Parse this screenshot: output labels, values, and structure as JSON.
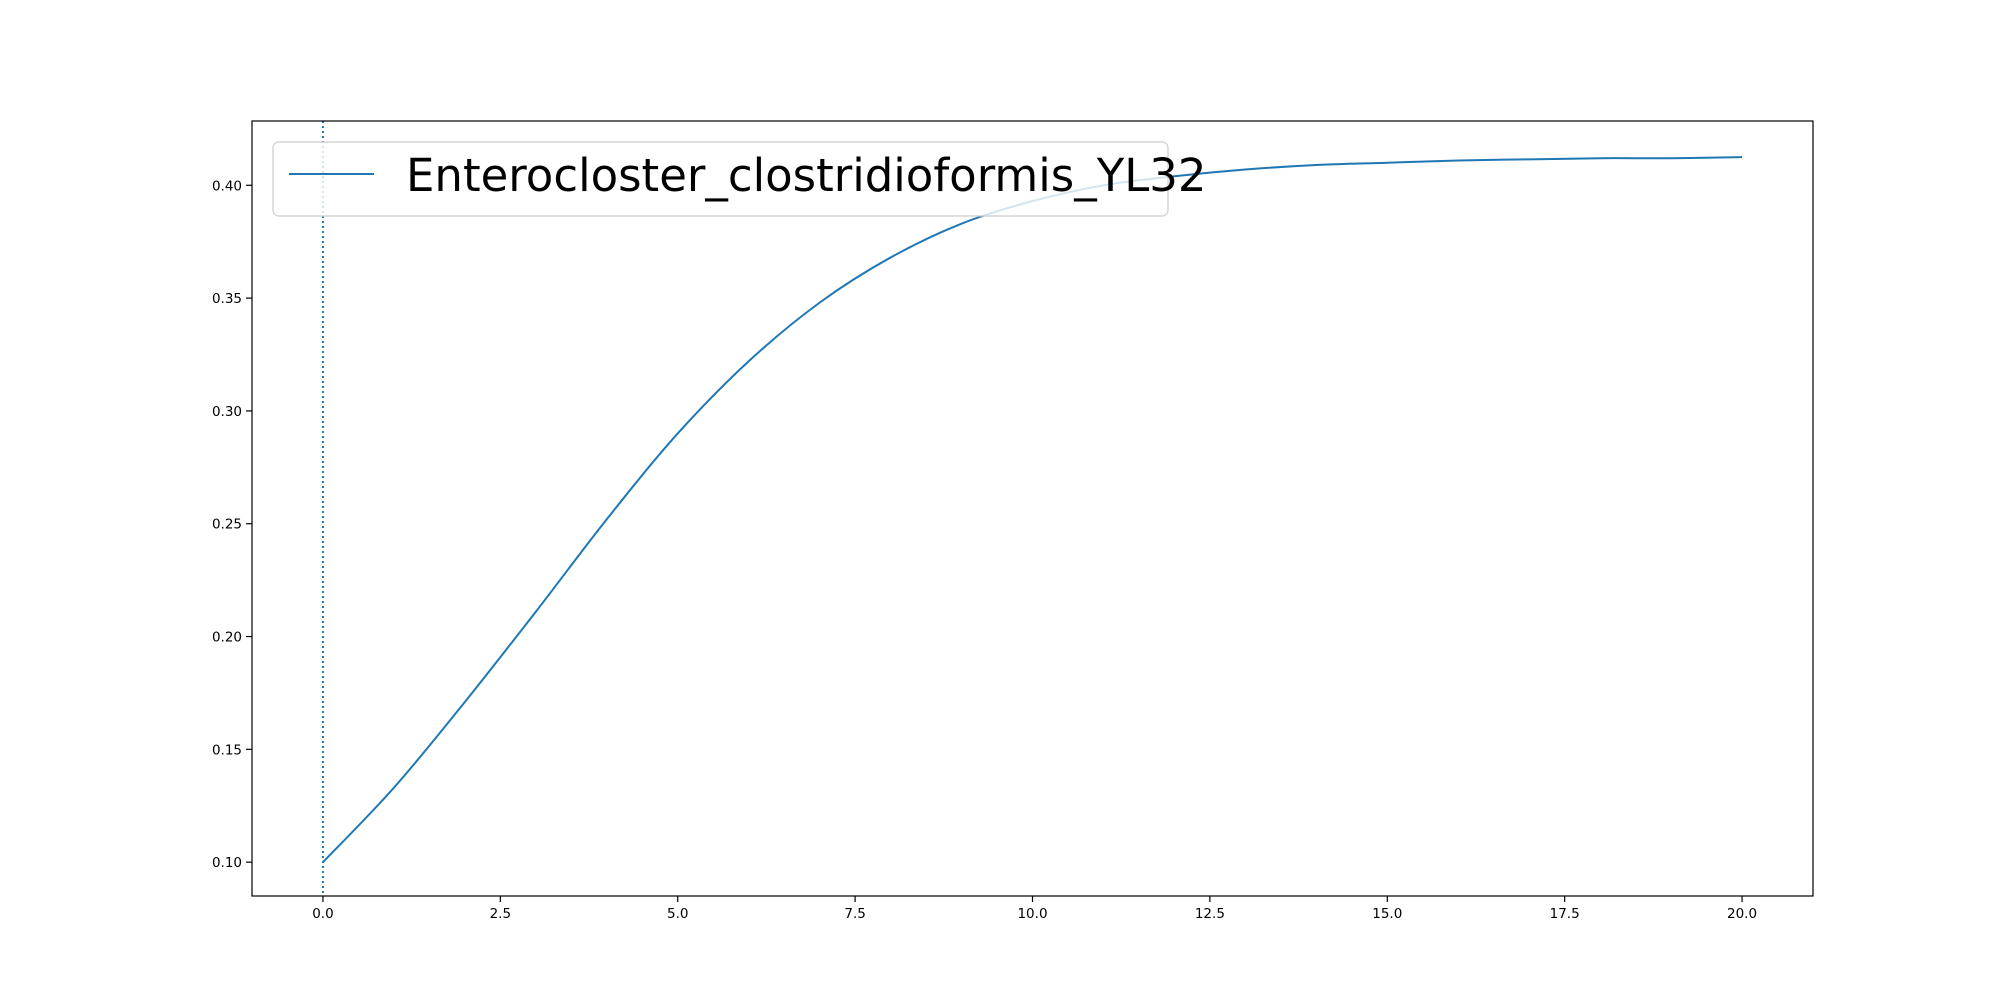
{
  "chart_data": {
    "type": "line",
    "title": "",
    "xlabel": "",
    "ylabel": "",
    "xlim": [
      -1.0,
      21.0
    ],
    "ylim": [
      0.085,
      0.4285
    ],
    "x_ticks": [
      0.0,
      2.5,
      5.0,
      7.5,
      10.0,
      12.5,
      15.0,
      17.5,
      20.0
    ],
    "x_tick_labels": [
      "0.0",
      "2.5",
      "5.0",
      "7.5",
      "10.0",
      "12.5",
      "15.0",
      "17.5",
      "20.0"
    ],
    "y_ticks": [
      0.1,
      0.15,
      0.2,
      0.25,
      0.3,
      0.35,
      0.4
    ],
    "y_tick_labels": [
      "0.10",
      "0.15",
      "0.20",
      "0.25",
      "0.30",
      "0.35",
      "0.40"
    ],
    "grid": false,
    "legend_position": "upper-left",
    "series": [
      {
        "name": "Enterocloster_clostridioformis_YL32",
        "color": "#1f77b4",
        "x": [
          0,
          1,
          2,
          3,
          4,
          5,
          6,
          7,
          8,
          9,
          10,
          11,
          12,
          13,
          14,
          15,
          16,
          17,
          18,
          19,
          20
        ],
        "y": [
          0.1,
          0.133,
          0.171,
          0.211,
          0.252,
          0.29,
          0.322,
          0.348,
          0.368,
          0.383,
          0.393,
          0.4,
          0.404,
          0.407,
          0.409,
          0.41,
          0.411,
          0.4115,
          0.412,
          0.412,
          0.4125
        ]
      }
    ],
    "vertical_line": {
      "x": 0.0,
      "style": "dotted",
      "color": "#1f77b4"
    }
  }
}
